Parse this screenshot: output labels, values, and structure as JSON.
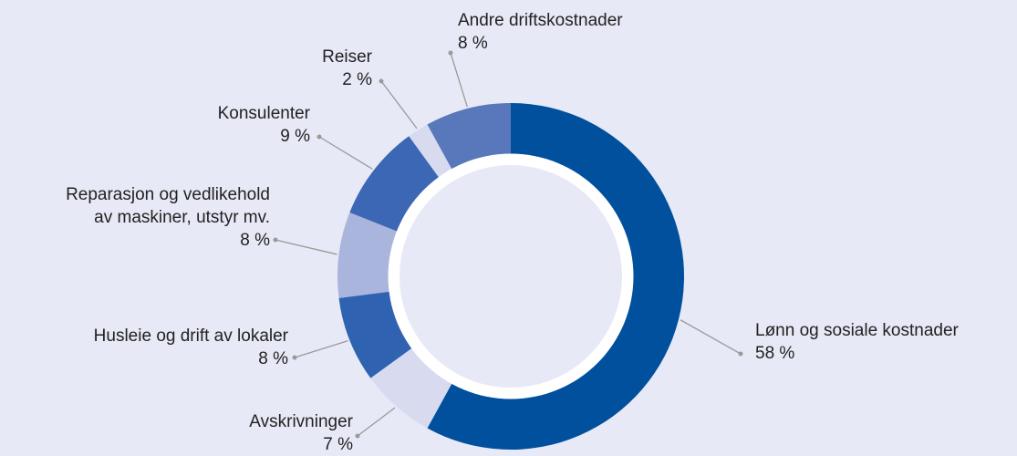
{
  "chart_data": {
    "type": "donut",
    "categories": [
      "Lønn og sosiale kostnader",
      "Avskrivninger",
      "Husleie og drift av lokaler",
      "Reparasjon og vedlikehold\nav maskiner, utstyr mv.",
      "Konsulenter",
      "Reiser",
      "Andre driftskostnader"
    ],
    "values": [
      58,
      7,
      8,
      8,
      9,
      2,
      8
    ],
    "value_labels": [
      "58 %",
      "7 %",
      "8 %",
      "8 %",
      "9 %",
      "2 %",
      "8 %"
    ],
    "colors": [
      "#00509e",
      "#d8dbef",
      "#2f62b0",
      "#a9b5dc",
      "#3c67b4",
      "#d8dbef",
      "#5878bb"
    ]
  }
}
